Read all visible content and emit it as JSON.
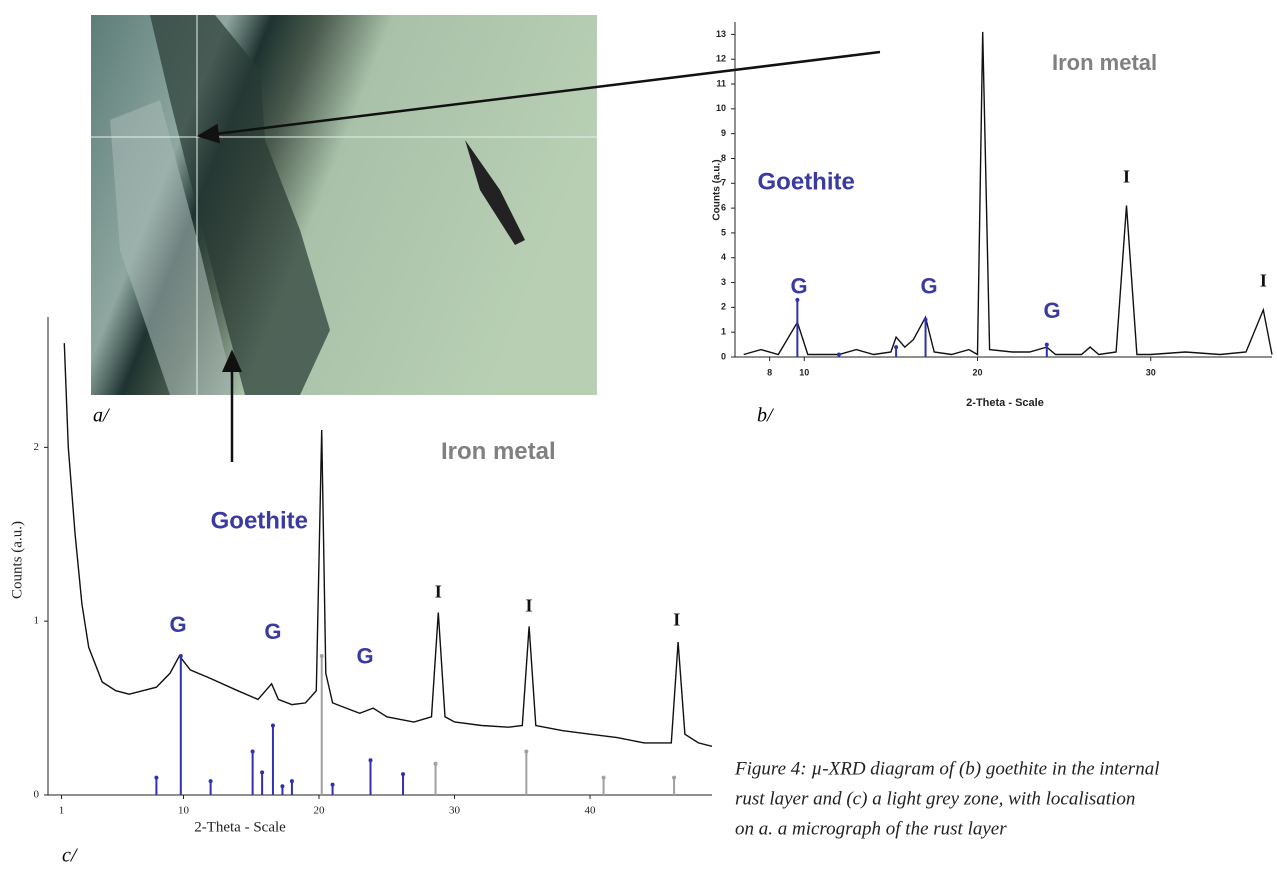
{
  "micrograph": {
    "label": "a/"
  },
  "caption": [
    "Figure 4: µ-XRD diagram of (b) goethite in the internal",
    "rust layer and (c) a light grey zone, with localisation",
    "on a. a micrograph of the rust layer"
  ],
  "chart_data": [
    {
      "type": "line",
      "panel_label": "b/",
      "x_label": "2-Theta - Scale",
      "y_label": "Counts (a.u.)",
      "xlim": [
        6,
        37
      ],
      "ylim": [
        0,
        13.5
      ],
      "xticks": [
        8,
        10,
        20,
        30
      ],
      "yticks": [
        0,
        1,
        2,
        3,
        4,
        5,
        6,
        7,
        8,
        9,
        10,
        11,
        12,
        13
      ],
      "series": [
        {
          "kind": "line",
          "color": "#111111",
          "x": [
            6.5,
            7.5,
            8.5,
            9.6,
            10.2,
            12,
            13,
            14,
            15,
            15.3,
            15.8,
            16.3,
            17,
            17.5,
            18.5,
            19.5,
            20,
            20.3,
            20.7,
            22,
            23,
            24,
            24.5,
            26,
            26.5,
            27,
            28,
            28.6,
            29.2,
            30,
            32,
            34,
            35.5,
            36.5,
            37
          ],
          "values": [
            0.1,
            0.3,
            0.1,
            1.4,
            0.1,
            0.1,
            0.3,
            0.1,
            0.2,
            0.8,
            0.4,
            0.7,
            1.6,
            0.2,
            0.1,
            0.3,
            0.1,
            13.1,
            0.3,
            0.2,
            0.2,
            0.4,
            0.1,
            0.1,
            0.4,
            0.1,
            0.2,
            6.1,
            0.1,
            0.1,
            0.2,
            0.1,
            0.2,
            1.9,
            0.1
          ]
        },
        {
          "kind": "stem",
          "color": "#3030b0",
          "x": [
            9.6,
            12,
            15.3,
            17,
            24
          ],
          "values": [
            2.3,
            0.1,
            0.4,
            1.5,
            0.5
          ]
        }
      ],
      "annotations": [
        {
          "text": "Iron metal",
          "x": 24.3,
          "y": 11.8,
          "color": "#808080"
        },
        {
          "text": "Goethite",
          "x": 7.3,
          "y": 7,
          "color": "#3a3aa0"
        },
        {
          "text": "G",
          "x": 9.7,
          "y": 2.8
        },
        {
          "text": "G",
          "x": 17.2,
          "y": 2.8
        },
        {
          "text": "G",
          "x": 24.3,
          "y": 1.8
        },
        {
          "text": "I",
          "x": 28.6,
          "y": 7.2
        },
        {
          "text": "I",
          "x": 36.5,
          "y": 3
        }
      ]
    },
    {
      "type": "line",
      "panel_label": "c/",
      "x_label": "2-Theta - Scale",
      "y_label": "Counts (a.u.)",
      "xlim": [
        0,
        49
      ],
      "ylim": [
        0,
        2.75
      ],
      "xticks": [
        1,
        10,
        20,
        30,
        40
      ],
      "yticks": [
        0,
        1,
        2
      ],
      "series": [
        {
          "kind": "line",
          "color": "#111111",
          "x": [
            1.2,
            1.5,
            2,
            2.5,
            3,
            4,
            5,
            6,
            7,
            8,
            9,
            9.7,
            10.5,
            12,
            14,
            15.5,
            16.5,
            17,
            18,
            19,
            19.8,
            20.2,
            20.5,
            21,
            22,
            23,
            24,
            25,
            27,
            28.3,
            28.8,
            29.3,
            30,
            32,
            34,
            35,
            35.5,
            36,
            38,
            40,
            42,
            44,
            46,
            46.5,
            47,
            48,
            49
          ],
          "values": [
            2.6,
            2.0,
            1.5,
            1.1,
            0.85,
            0.65,
            0.6,
            0.58,
            0.6,
            0.62,
            0.7,
            0.8,
            0.72,
            0.67,
            0.6,
            0.55,
            0.64,
            0.55,
            0.52,
            0.53,
            0.6,
            2.1,
            0.7,
            0.53,
            0.5,
            0.47,
            0.5,
            0.45,
            0.42,
            0.45,
            1.05,
            0.45,
            0.42,
            0.4,
            0.39,
            0.4,
            0.97,
            0.4,
            0.37,
            0.35,
            0.33,
            0.3,
            0.3,
            0.88,
            0.35,
            0.3,
            0.28
          ]
        },
        {
          "kind": "stem",
          "color": "#3030b0",
          "x": [
            8,
            9.8,
            12,
            15.1,
            15.8,
            16.6,
            17.3,
            18,
            21,
            23.8,
            26.2
          ],
          "values": [
            0.1,
            0.8,
            0.08,
            0.25,
            0.13,
            0.4,
            0.05,
            0.08,
            0.06,
            0.2,
            0.12
          ]
        },
        {
          "kind": "stem",
          "color": "#a0a0a0",
          "x": [
            20.2,
            28.6,
            35.3,
            41,
            46.2
          ],
          "values": [
            0.8,
            0.18,
            0.25,
            0.1,
            0.1
          ]
        }
      ],
      "annotations": [
        {
          "text": "Iron metal",
          "x": 29,
          "y": 1.97,
          "color": "#808080"
        },
        {
          "text": "Goethite",
          "x": 12,
          "y": 1.57,
          "color": "#3a3aa0"
        },
        {
          "text": "G",
          "x": 9.6,
          "y": 0.97
        },
        {
          "text": "G",
          "x": 16.6,
          "y": 0.93
        },
        {
          "text": "G",
          "x": 23.4,
          "y": 0.79
        },
        {
          "text": "I",
          "x": 28.8,
          "y": 1.16
        },
        {
          "text": "I",
          "x": 35.5,
          "y": 1.08
        },
        {
          "text": "I",
          "x": 46.4,
          "y": 1
        }
      ]
    }
  ]
}
